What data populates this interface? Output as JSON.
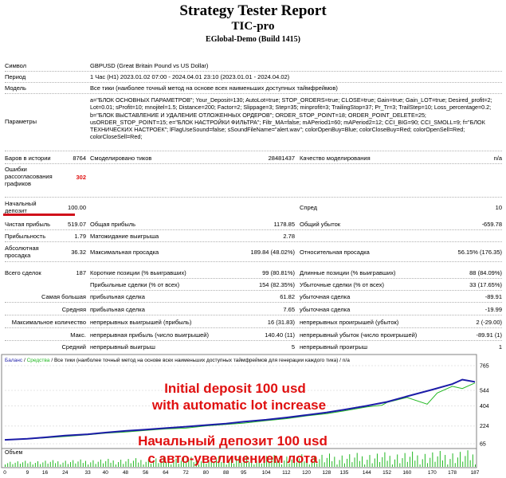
{
  "header": {
    "title": "Strategy Tester Report",
    "subtitle": "TIC-pro",
    "build": "EGlobal-Demo (Build 1415)"
  },
  "info": {
    "symbol_label": "Символ",
    "symbol_value": "GBPUSD (Great Britain Pound vs US Dollar)",
    "period_label": "Период",
    "period_value": "1 Час (H1) 2023.01.02 07:00 - 2024.04.01 23:10 (2023.01.01 - 2024.04.02)",
    "model_label": "Модель",
    "model_value": "Все тики (наиболее точный метод на основе всех наименьших доступных таймфреймов)",
    "params_label": "Параметры",
    "params_value": "a=\"БЛОК ОСНОВНЫХ ПАРАМЕТРОВ\"; Your_Deposit=130; AutoLot=true; STOP_ORDERS=true; CLOSE=true; Gain=true; Gain_LOT=true; Desired_profit=2; Lot=0.01; sProfit=10; mnojitel=1.5; Distance=200; Factor=2; Slippage=3; Step=35; minprofit=3; TrailingStop=37; Pr_Tr=3; TrailStep=10; Loss_percentage=0.2; b=\"БЛОК ВЫСТАВЛЕНИЕ И УДАЛЕНИЕ ОТЛОЖЕННЫХ ОРДЕРОВ\"; ORDER_STOP_POINT=18; ORDER_POINT_DELETE=25; usORDER_STOP_POINT=15; e=\"БЛОК НАСТРОЙКИ ФИЛЬТРА\"; Filtr_MA=false; mAPeriod1=60; mAPeriod2=12; CCI_BIG=90; CCI_SMOLL=9; f=\"БЛОК ТЕХНИЧЕСКИХ НАСТРОЕК\"; lFlagUseSound=false; sSoundFileName=\"alert.wav\"; colorOpenBuy=Blue; colorCloseBuy=Red; colorOpenSell=Red; colorCloseSell=Red;"
  },
  "stats": {
    "bars_label": "Баров в истории",
    "bars_value": "8764",
    "ticks_label": "Смоделировано тиков",
    "ticks_value": "28481437",
    "quality_label": "Качество моделирования",
    "quality_value": "n/a",
    "errors_label": "Ошибки рассогласования графиков",
    "errors_value": "302",
    "deposit_label": "Начальный депозит",
    "deposit_value": "100.00",
    "spread_label": "Спред",
    "spread_value": "10",
    "net_label": "Чистая прибыль",
    "net_value": "519.07",
    "gross_profit_label": "Общая прибыль",
    "gross_profit_value": "1178.85",
    "gross_loss_label": "Общий убыток",
    "gross_loss_value": "-659.78",
    "pf_label": "Прибыльность",
    "pf_value": "1.79",
    "payoff_label": "Матожидание выигрыша",
    "payoff_value": "2.78",
    "abs_dd_label": "Абсолютная просадка",
    "abs_dd_value": "36.32",
    "max_dd_label": "Максимальная просадка",
    "max_dd_value": "189.84 (48.02%)",
    "rel_dd_label": "Относительная просадка",
    "rel_dd_value": "56.15% (176.35)",
    "total_label": "Всего сделок",
    "total_value": "187",
    "short_label": "Короткие позиции (% выигравших)",
    "short_value": "99 (80.81%)",
    "long_label": "Длинные позиции (% выигравших)",
    "long_value": "88 (84.09%)",
    "profit_trades_label": "Прибыльные сделки (% от всех)",
    "profit_trades_value": "154 (82.35%)",
    "loss_trades_label": "Убыточные сделки (% от всех)",
    "loss_trades_value": "33 (17.65%)",
    "largest_label": "Самая большая",
    "largest_profit_label": "прибыльная сделка",
    "largest_profit_value": "61.82",
    "largest_loss_label": "убыточная сделка",
    "largest_loss_value": "-89.91",
    "avg_label": "Средняя",
    "avg_profit_label": "прибыльная сделка",
    "avg_profit_value": "7.65",
    "avg_loss_label": "убыточная сделка",
    "avg_loss_value": "-19.99",
    "maxcount_label": "Максимальное количество",
    "cons_wins_label": "непрерывных выигрышей (прибыль)",
    "cons_wins_value": "16 (31.83)",
    "cons_losses_label": "непрерывных проигрышей (убыток)",
    "cons_losses_value": "2 (-29.00)",
    "maxim_label": "Макс.",
    "cons_profit_label": "непрерывная прибыль (число выигрышей)",
    "cons_profit_value": "140.40 (11)",
    "cons_loss_label": "непрерывный убыток (число проигрышей)",
    "cons_loss_value": "-89.91 (1)",
    "average_label": "Средний",
    "avg_wins_label": "непрерывный выигрыш",
    "avg_wins_value": "5",
    "avg_losses_label": "непрерывный проигрыш",
    "avg_losses_value": "1"
  },
  "colors": {
    "balance": "#1c1ca8",
    "equity": "#22b822",
    "annotation": "#e01010",
    "highlight": "#e01010"
  },
  "chart_data": {
    "type": "line",
    "legend": "Баланс / Средства / Все тики (наиболее точный метод на основе всех наименьших доступных таймфреймов для генерации каждого тика) / n/a",
    "legend_balance": "Баланс",
    "legend_equity": "Средства",
    "legend_rest": "/ Все тики (наиболее точный метод на основе всех наименьших доступных таймфреймов для генерации каждого тика) / n/a",
    "yticks": [
      "765",
      "544",
      "404",
      "224",
      "65"
    ],
    "xticks": [
      "0",
      "9",
      "16",
      "24",
      "33",
      "40",
      "48",
      "56",
      "64",
      "72",
      "80",
      "88",
      "95",
      "104",
      "112",
      "120",
      "128",
      "135",
      "144",
      "152",
      "160",
      "170",
      "178",
      "187"
    ],
    "volume_label": "Объем",
    "ylim": [
      65,
      765
    ],
    "xlim": [
      0,
      187
    ],
    "balance": [
      [
        0,
        100
      ],
      [
        9,
        110
      ],
      [
        16,
        122
      ],
      [
        24,
        138
      ],
      [
        33,
        150
      ],
      [
        40,
        165
      ],
      [
        48,
        180
      ],
      [
        56,
        192
      ],
      [
        64,
        205
      ],
      [
        72,
        218
      ],
      [
        80,
        232
      ],
      [
        88,
        245
      ],
      [
        95,
        262
      ],
      [
        104,
        280
      ],
      [
        112,
        300
      ],
      [
        120,
        322
      ],
      [
        128,
        345
      ],
      [
        135,
        370
      ],
      [
        144,
        405
      ],
      [
        152,
        440
      ],
      [
        160,
        490
      ],
      [
        170,
        550
      ],
      [
        178,
        600
      ],
      [
        182,
        640
      ],
      [
        187,
        620
      ]
    ],
    "equity": [
      [
        0,
        100
      ],
      [
        9,
        108
      ],
      [
        16,
        118
      ],
      [
        24,
        130
      ],
      [
        33,
        145
      ],
      [
        40,
        160
      ],
      [
        48,
        170
      ],
      [
        56,
        185
      ],
      [
        64,
        198
      ],
      [
        72,
        205
      ],
      [
        80,
        225
      ],
      [
        88,
        238
      ],
      [
        95,
        250
      ],
      [
        104,
        272
      ],
      [
        112,
        290
      ],
      [
        120,
        315
      ],
      [
        128,
        335
      ],
      [
        135,
        360
      ],
      [
        144,
        395
      ],
      [
        150,
        410
      ],
      [
        152,
        435
      ],
      [
        160,
        480
      ],
      [
        168,
        420
      ],
      [
        172,
        520
      ],
      [
        178,
        580
      ],
      [
        182,
        560
      ],
      [
        187,
        610
      ]
    ]
  },
  "annotations": {
    "en_line1": "Initial deposit 100 usd",
    "en_line2": "with automatic lot increase",
    "ru_line1": "Начальный депозит 100 usd",
    "ru_line2": "с авто-увеличением лота"
  }
}
